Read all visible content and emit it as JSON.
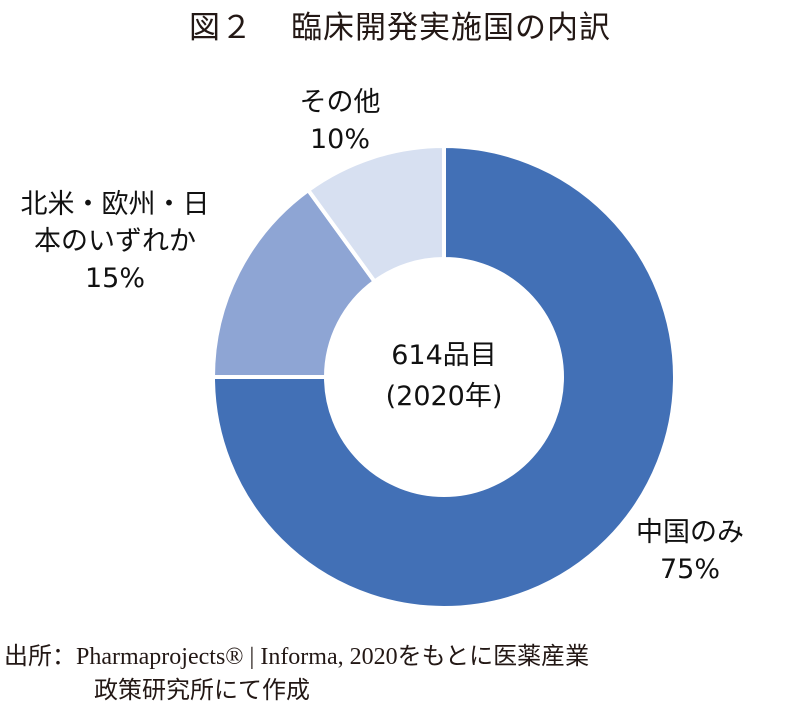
{
  "title": {
    "fig_no": "図２",
    "text": "臨床開発実施国の内訳"
  },
  "center_label": {
    "line1": "614品目",
    "line2": "(2020年)"
  },
  "labels": {
    "china": {
      "line1": "中国のみ",
      "line2": "75%"
    },
    "west": {
      "line1": "北米・欧州・日",
      "line2": "本のいずれか",
      "line3": "15%"
    },
    "other": {
      "line1": "その他",
      "line2": "10%"
    }
  },
  "source": {
    "line1": "出所：Pharmaprojects® | Informa, 2020をもとに医薬産業",
    "line2": "政策研究所にて作成"
  },
  "colors": {
    "china": "#4270b6",
    "west": "#8ea5d4",
    "other": "#d7e0f1",
    "separator": "#ffffff"
  },
  "chart_data": {
    "type": "pie",
    "subtype": "donut",
    "title": "図２ 臨床開発実施国の内訳",
    "center_text": "614品目 (2020年)",
    "total": 614,
    "categories": [
      "中国のみ",
      "北米・欧州・日本のいずれか",
      "その他"
    ],
    "values": [
      75,
      15,
      10
    ],
    "unit": "%",
    "start_angle_deg": 0,
    "direction": "clockwise",
    "colors": [
      "#4270b6",
      "#8ea5d4",
      "#d7e0f1"
    ],
    "legend": "none (direct labels)",
    "source": "Pharmaprojects® | Informa, 2020をもとに医薬産業政策研究所にて作成"
  }
}
